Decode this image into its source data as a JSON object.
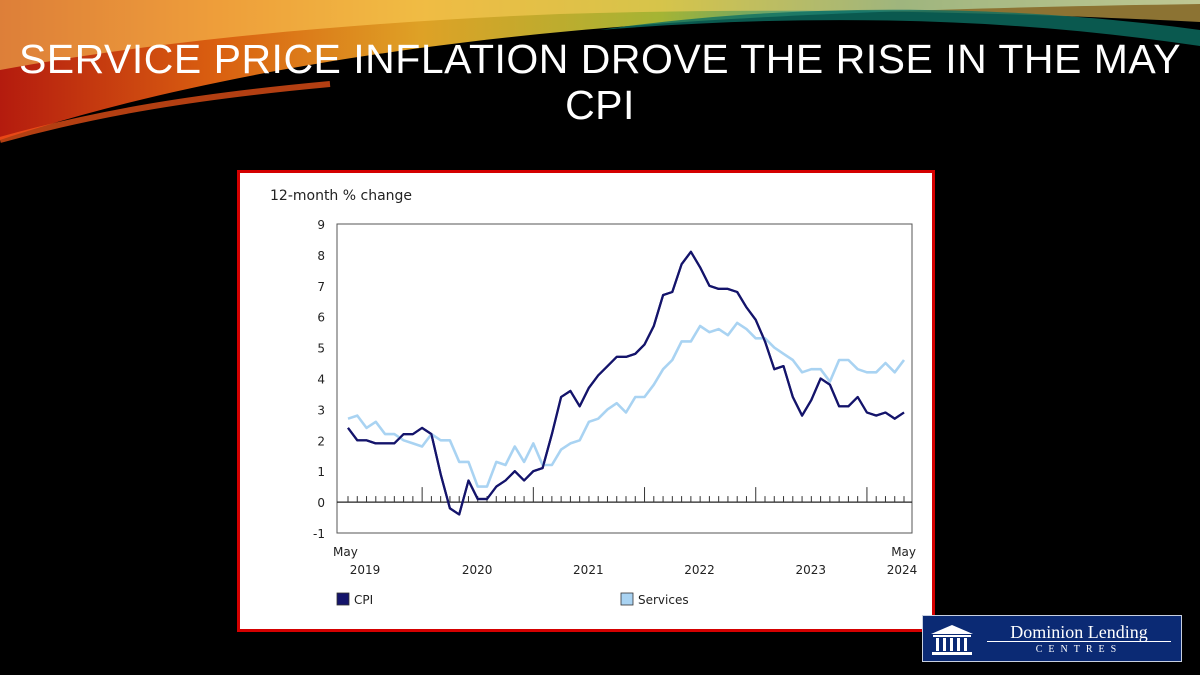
{
  "slide": {
    "title": "SERVICE PRICE INFLATION DROVE THE RISE IN THE MAY CPI"
  },
  "logo": {
    "name": "Dominion Lending",
    "sub": "CENTRES"
  },
  "colors": {
    "cpi": "#14146b",
    "services": "#a9d3f2",
    "frame": "#d40000"
  },
  "chart_data": {
    "type": "line",
    "title": "12-month % change",
    "ylim": [
      -1,
      9
    ],
    "yticks": [
      -1,
      0,
      1,
      2,
      3,
      4,
      5,
      6,
      7,
      8,
      9
    ],
    "start_label": [
      "May",
      "2019"
    ],
    "end_label": [
      "May",
      "2024"
    ],
    "year_labels": [
      "2020",
      "2021",
      "2022",
      "2023"
    ],
    "legend_placement": "bottom",
    "series": [
      {
        "name": "CPI",
        "color": "#14146b",
        "values": [
          2.4,
          2.0,
          2.0,
          1.9,
          1.9,
          1.9,
          2.2,
          2.2,
          2.4,
          2.2,
          0.9,
          -0.2,
          -0.4,
          0.7,
          0.1,
          0.1,
          0.5,
          0.7,
          1.0,
          0.7,
          1.0,
          1.1,
          2.2,
          3.4,
          3.6,
          3.1,
          3.7,
          4.1,
          4.4,
          4.7,
          4.7,
          4.8,
          5.1,
          5.7,
          6.7,
          6.8,
          7.7,
          8.1,
          7.6,
          7.0,
          6.9,
          6.9,
          6.8,
          6.3,
          5.9,
          5.2,
          4.3,
          4.4,
          3.4,
          2.8,
          3.3,
          4.0,
          3.8,
          3.1,
          3.1,
          3.4,
          2.9,
          2.8,
          2.9,
          2.7,
          2.9
        ]
      },
      {
        "name": "Services",
        "color": "#a9d3f2",
        "values": [
          2.7,
          2.8,
          2.4,
          2.6,
          2.2,
          2.2,
          2.0,
          1.9,
          1.8,
          2.2,
          2.0,
          2.0,
          1.3,
          1.3,
          0.5,
          0.5,
          1.3,
          1.2,
          1.8,
          1.3,
          1.9,
          1.2,
          1.2,
          1.7,
          1.9,
          2.0,
          2.6,
          2.7,
          3.0,
          3.2,
          2.9,
          3.4,
          3.4,
          3.8,
          4.3,
          4.6,
          5.2,
          5.2,
          5.7,
          5.5,
          5.6,
          5.4,
          5.8,
          5.6,
          5.3,
          5.3,
          5.0,
          4.8,
          4.6,
          4.2,
          4.3,
          4.3,
          3.9,
          4.6,
          4.6,
          4.3,
          4.2,
          4.2,
          4.5,
          4.2,
          4.6
        ]
      }
    ]
  }
}
